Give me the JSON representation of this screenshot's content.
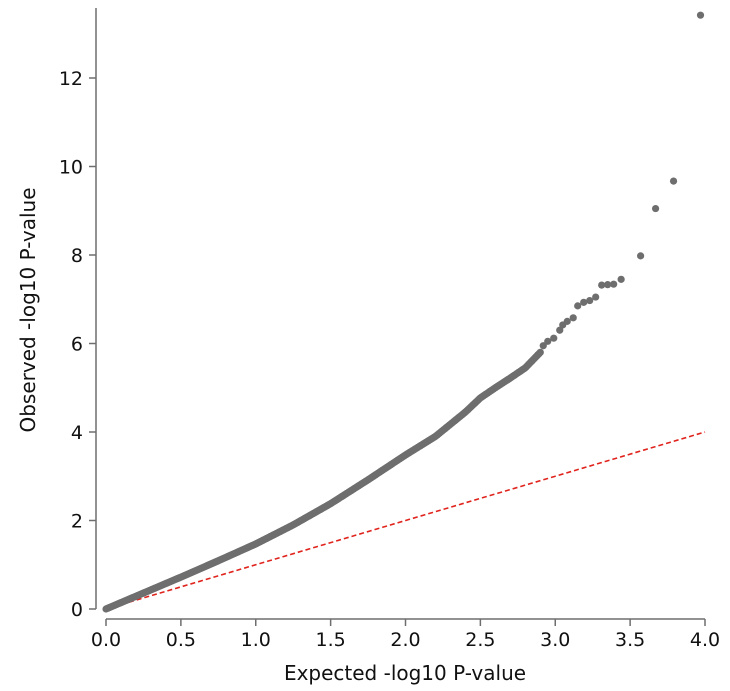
{
  "chart_data": {
    "type": "scatter",
    "title": "",
    "xlabel": "Expected -log10 P-value",
    "ylabel": "Observed -log10 P-value",
    "xlim": [
      0.0,
      4.0
    ],
    "ylim": [
      0,
      13.5
    ],
    "xticks": [
      "0.0",
      "0.5",
      "1.0",
      "1.5",
      "2.0",
      "2.5",
      "3.0",
      "3.5",
      "4.0"
    ],
    "yticks": [
      "0",
      "2",
      "4",
      "6",
      "8",
      "10",
      "12"
    ],
    "grid": false,
    "point_color": "#6e6e6e",
    "reference_line": {
      "style": "dashed",
      "color": "#e0231c",
      "from": [
        0,
        0
      ],
      "to": [
        4.0,
        4.0
      ]
    },
    "curve_knots": [
      [
        0.0,
        0.0
      ],
      [
        0.25,
        0.36
      ],
      [
        0.5,
        0.72
      ],
      [
        0.75,
        1.09
      ],
      [
        1.0,
        1.47
      ],
      [
        1.25,
        1.9
      ],
      [
        1.5,
        2.38
      ],
      [
        1.75,
        2.92
      ],
      [
        2.0,
        3.48
      ],
      [
        2.2,
        3.9
      ],
      [
        2.4,
        4.45
      ],
      [
        2.5,
        4.77
      ],
      [
        2.6,
        5.0
      ],
      [
        2.7,
        5.22
      ],
      [
        2.8,
        5.45
      ],
      [
        2.9,
        5.8
      ]
    ],
    "curve_point_count": 380,
    "tail_points": [
      [
        2.92,
        5.95
      ],
      [
        2.95,
        6.05
      ],
      [
        2.99,
        6.12
      ],
      [
        3.03,
        6.3
      ],
      [
        3.05,
        6.42
      ],
      [
        3.08,
        6.5
      ],
      [
        3.12,
        6.58
      ],
      [
        3.15,
        6.85
      ],
      [
        3.19,
        6.93
      ],
      [
        3.23,
        6.97
      ],
      [
        3.27,
        7.05
      ],
      [
        3.31,
        7.32
      ],
      [
        3.35,
        7.33
      ],
      [
        3.39,
        7.34
      ],
      [
        3.44,
        7.45
      ],
      [
        3.57,
        7.98
      ],
      [
        3.67,
        9.05
      ],
      [
        3.79,
        9.67
      ],
      [
        3.97,
        13.42
      ]
    ]
  }
}
